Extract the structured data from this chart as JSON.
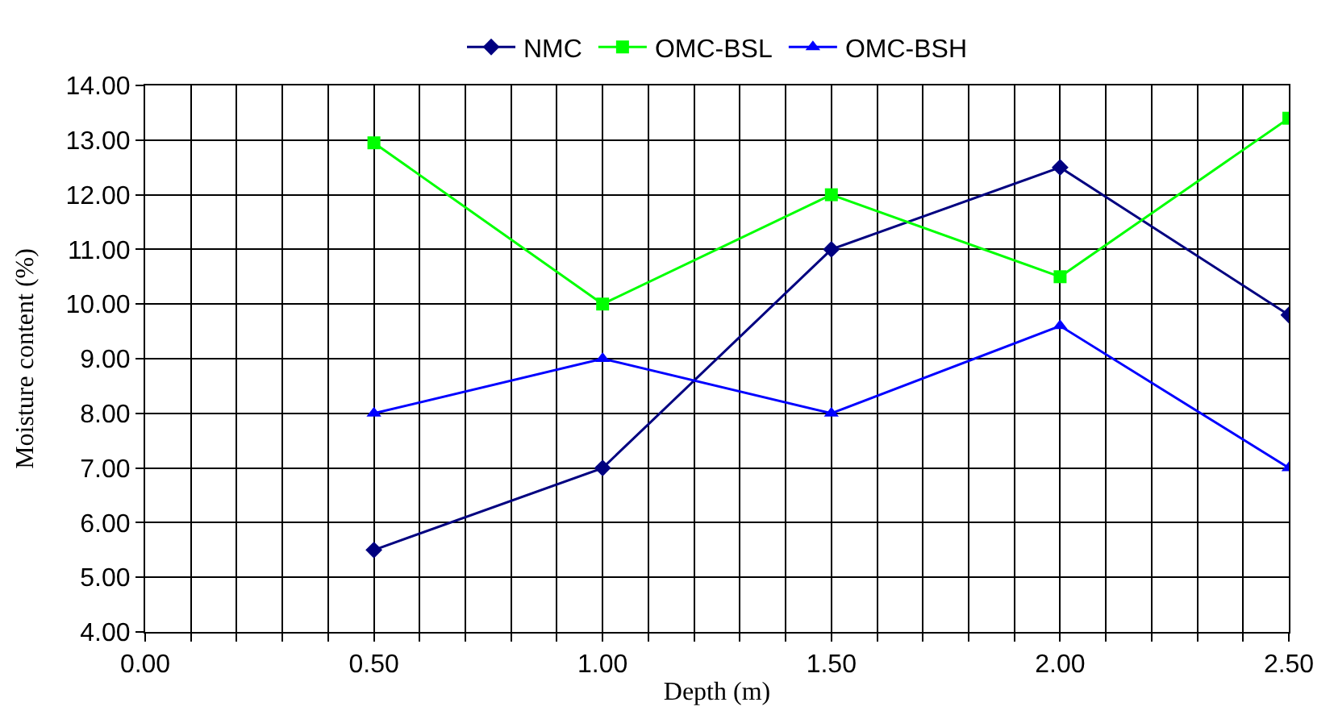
{
  "chart_data": {
    "type": "line",
    "xlabel": "Depth (m)",
    "ylabel": "Moisture content (%)",
    "x": [
      0.5,
      1.0,
      1.5,
      2.0,
      2.5
    ],
    "series": [
      {
        "name": "NMC",
        "color": "#000080",
        "marker": "diamond",
        "values": [
          5.5,
          7.0,
          11.0,
          12.5,
          9.8
        ]
      },
      {
        "name": "OMC-BSL",
        "color": "#00ff00",
        "marker": "square",
        "values": [
          12.95,
          10.0,
          12.0,
          10.5,
          13.4
        ]
      },
      {
        "name": "OMC-BSH",
        "color": "#0000ff",
        "marker": "triangle",
        "values": [
          8.0,
          9.0,
          8.0,
          9.6,
          7.0
        ]
      }
    ],
    "xlim": [
      0,
      2.5
    ],
    "xticks": [
      {
        "value": 0.0,
        "label": "0.00"
      },
      {
        "value": 0.1,
        "label": null
      },
      {
        "value": 0.2,
        "label": null
      },
      {
        "value": 0.3,
        "label": null
      },
      {
        "value": 0.4,
        "label": null
      },
      {
        "value": 0.5,
        "label": "0.50"
      },
      {
        "value": 0.6,
        "label": null
      },
      {
        "value": 0.7,
        "label": null
      },
      {
        "value": 0.8,
        "label": null
      },
      {
        "value": 0.9,
        "label": null
      },
      {
        "value": 1.0,
        "label": "1.00"
      },
      {
        "value": 1.1,
        "label": null
      },
      {
        "value": 1.2,
        "label": null
      },
      {
        "value": 1.3,
        "label": null
      },
      {
        "value": 1.4,
        "label": null
      },
      {
        "value": 1.5,
        "label": "1.50"
      },
      {
        "value": 1.6,
        "label": null
      },
      {
        "value": 1.7,
        "label": null
      },
      {
        "value": 1.8,
        "label": null
      },
      {
        "value": 1.9,
        "label": null
      },
      {
        "value": 2.0,
        "label": "2.00"
      },
      {
        "value": 2.1,
        "label": null
      },
      {
        "value": 2.2,
        "label": null
      },
      {
        "value": 2.3,
        "label": null
      },
      {
        "value": 2.4,
        "label": null
      },
      {
        "value": 2.5,
        "label": "2.50"
      }
    ],
    "ylim": [
      4,
      14
    ],
    "yticks": [
      {
        "value": 4,
        "label": "4.00"
      },
      {
        "value": 5,
        "label": "5.00"
      },
      {
        "value": 6,
        "label": "6.00"
      },
      {
        "value": 7,
        "label": "7.00"
      },
      {
        "value": 8,
        "label": "8.00"
      },
      {
        "value": 9,
        "label": "9.00"
      },
      {
        "value": 10,
        "label": "10.00"
      },
      {
        "value": 11,
        "label": "11.00"
      },
      {
        "value": 12,
        "label": "12.00"
      },
      {
        "value": 13,
        "label": "13.00"
      },
      {
        "value": 14,
        "label": "14.00"
      }
    ],
    "grid": true,
    "legend": "top",
    "line_style": "solid"
  }
}
